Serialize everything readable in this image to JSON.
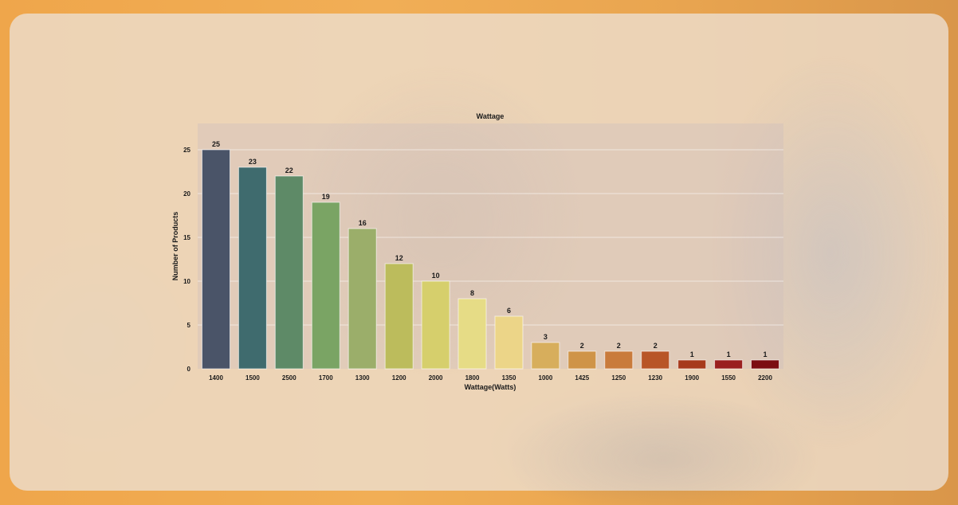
{
  "chart_data": {
    "type": "bar",
    "title": "Wattage",
    "xlabel": "Wattage(Watts)",
    "ylabel": "Number of Products",
    "ylim": [
      0,
      25
    ],
    "yticks": [
      "0",
      "5",
      "10",
      "15",
      "20",
      "25"
    ],
    "grid": true,
    "categories": [
      "1400",
      "1500",
      "2500",
      "1700",
      "1300",
      "1200",
      "2000",
      "1800",
      "1350",
      "1000",
      "1425",
      "1250",
      "1230",
      "1900",
      "1550",
      "2200"
    ],
    "values": [
      25,
      23,
      22,
      19,
      16,
      12,
      10,
      8,
      6,
      3,
      2,
      2,
      2,
      1,
      1,
      1
    ],
    "colors": [
      "#4a5468",
      "#3f6b6e",
      "#5e8a67",
      "#7aa464",
      "#9bae6a",
      "#bcbc5c",
      "#d6cf6c",
      "#e6dc86",
      "#ecd588",
      "#d7ae5c",
      "#cf9448",
      "#c97b3c",
      "#b85527",
      "#a73a1c",
      "#9a1f1f",
      "#7c0c12"
    ]
  }
}
